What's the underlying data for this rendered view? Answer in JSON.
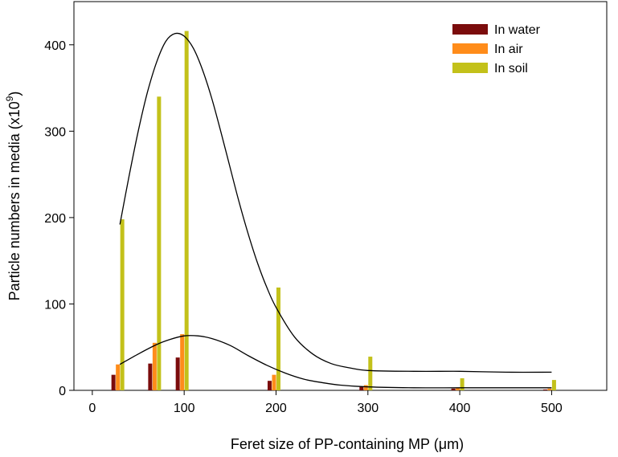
{
  "chart_data": {
    "type": "bar",
    "xlabel": "Feret size of PP-containing MP (",
    "xlabel_unit": "μm",
    "xlabel_close": ")",
    "ylabel": "Particle numbers in media (x10",
    "ylabel_exp": "9",
    "ylabel_close": ")",
    "xlim": [
      -20,
      560
    ],
    "ylim": [
      0,
      450
    ],
    "xticks": [
      0,
      100,
      200,
      300,
      400,
      500
    ],
    "yticks": [
      0,
      100,
      200,
      300,
      400
    ],
    "categories": [
      30,
      70,
      100,
      200,
      300,
      400,
      500
    ],
    "series": [
      {
        "name": "In water",
        "color": "#7b0c0c",
        "values": [
          18,
          31,
          38,
          11,
          4,
          2,
          1
        ]
      },
      {
        "name": "In air",
        "color": "#ff8c1a",
        "values": [
          30,
          55,
          65,
          18,
          6,
          3,
          2
        ]
      },
      {
        "name": "In soil",
        "color": "#c3c11a",
        "values": [
          198,
          340,
          416,
          119,
          39,
          14,
          12
        ]
      }
    ],
    "fit_curves": [
      {
        "name": "soil-fit",
        "x": [
          30,
          40,
          50,
          60,
          70,
          80,
          90,
          100,
          110,
          120,
          130,
          140,
          150,
          160,
          170,
          180,
          190,
          200,
          220,
          240,
          260,
          280,
          300,
          350,
          400,
          450,
          500
        ],
        "y": [
          192,
          248,
          300,
          345,
          380,
          404,
          413,
          410,
          396,
          371,
          338,
          299,
          258,
          217,
          180,
          147,
          119,
          96,
          62,
          42,
          31,
          26,
          23,
          22,
          22,
          21,
          21
        ]
      },
      {
        "name": "water-air-fit",
        "x": [
          30,
          50,
          70,
          85,
          100,
          115,
          130,
          150,
          170,
          190,
          210,
          230,
          250,
          270,
          300,
          350,
          400,
          450,
          500
        ],
        "y": [
          30,
          42,
          53,
          59,
          63,
          63,
          60,
          52,
          40,
          29,
          20,
          13,
          9,
          6,
          4,
          3,
          3,
          3,
          3
        ]
      }
    ],
    "legend_position": "top-right"
  }
}
